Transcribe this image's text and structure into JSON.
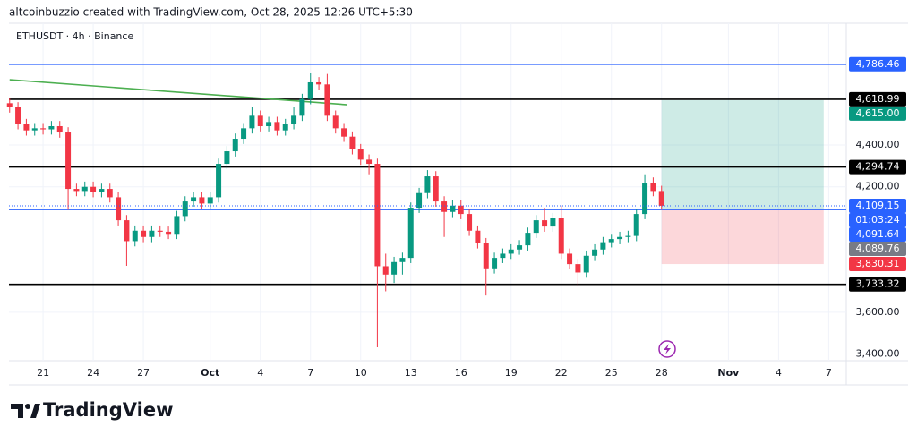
{
  "chart_data": {
    "type": "candlestick",
    "caption": "altcoinbuzzio created with TradingView.com, Oct 28, 2025 12:26 UTC+5:30",
    "title": "ETHUSDT · 4h · Binance",
    "brand": "TradingView",
    "up_color": "#089981",
    "down_color": "#f23645",
    "grid": true,
    "x": [
      19,
      19.5,
      20,
      20.5,
      21,
      21.5,
      22,
      22.5,
      23,
      23.5,
      24,
      24.5,
      25,
      25.5,
      26,
      26.5,
      27,
      27.5,
      28,
      28.5,
      29,
      29.5,
      30,
      30.5,
      31,
      31.5,
      32,
      32.5,
      33,
      33.5,
      34,
      34.5,
      35,
      35.5,
      36,
      36.5,
      37,
      37.5,
      38,
      38.5,
      39,
      39.5,
      40,
      40.5,
      41,
      41.5,
      42,
      42.5,
      43,
      43.5,
      44,
      44.5,
      45,
      45.5,
      46,
      46.5,
      47,
      47.5,
      48,
      48.5,
      49,
      49.5,
      50,
      50.5,
      51,
      51.5,
      52,
      52.5,
      53,
      53.5,
      54,
      54.5,
      55,
      55.5,
      56,
      56.5,
      57,
      57.5,
      58
    ],
    "open": [
      4600,
      4580,
      4500,
      4470,
      4480,
      4475,
      4490,
      4460,
      4190,
      4180,
      4200,
      4175,
      4190,
      4150,
      4040,
      3940,
      3990,
      3960,
      3990,
      3985,
      3975,
      4060,
      4130,
      4150,
      4120,
      4150,
      4310,
      4370,
      4430,
      4480,
      4540,
      4490,
      4510,
      4470,
      4500,
      4540,
      4620,
      4700,
      4690,
      4540,
      4480,
      4440,
      4380,
      4330,
      4310,
      3820,
      3780,
      3840,
      3860,
      4100,
      4170,
      4250,
      4130,
      4080,
      4110,
      4070,
      3990,
      3930,
      3810,
      3860,
      3880,
      3900,
      3920,
      3980,
      4040,
      4010,
      4050,
      3880,
      3830,
      3790,
      3870,
      3900,
      3935,
      3950,
      3960,
      3965,
      4070,
      4220,
      4180
    ],
    "high": [
      4625,
      4605,
      4525,
      4505,
      4505,
      4515,
      4515,
      4485,
      4215,
      4225,
      4225,
      4215,
      4215,
      4175,
      4065,
      4015,
      4015,
      4015,
      4015,
      4010,
      4085,
      4155,
      4175,
      4175,
      4175,
      4335,
      4395,
      4455,
      4505,
      4580,
      4565,
      4535,
      4535,
      4525,
      4580,
      4645,
      4743,
      4725,
      4740,
      4565,
      4505,
      4465,
      4405,
      4355,
      4335,
      3880,
      3865,
      3885,
      4125,
      4195,
      4280,
      4275,
      4155,
      4135,
      4135,
      4095,
      4015,
      3955,
      3885,
      3905,
      3925,
      3945,
      4005,
      4065,
      4100,
      4075,
      4110,
      3905,
      3855,
      3895,
      3925,
      3960,
      3975,
      3985,
      3990,
      4095,
      4260,
      4245,
      4205
    ],
    "low": [
      4555,
      4475,
      4445,
      4445,
      4450,
      4450,
      4435,
      4090,
      4155,
      4155,
      4150,
      4150,
      4125,
      4015,
      3822,
      3915,
      3935,
      3935,
      3960,
      3950,
      3950,
      4035,
      4105,
      4095,
      4095,
      4125,
      4285,
      4345,
      4405,
      4455,
      4465,
      4465,
      4445,
      4445,
      4475,
      4515,
      4595,
      4665,
      4515,
      4455,
      4415,
      4355,
      4305,
      4260,
      3432,
      3700,
      3740,
      3780,
      3835,
      4075,
      4145,
      4105,
      3960,
      4055,
      4045,
      3965,
      3905,
      3680,
      3785,
      3835,
      3855,
      3875,
      3895,
      3955,
      3985,
      3985,
      3855,
      3805,
      3723,
      3765,
      3845,
      3875,
      3910,
      3925,
      3935,
      3940,
      4045,
      4155,
      4090
    ],
    "close": [
      4580,
      4500,
      4470,
      4480,
      4475,
      4490,
      4460,
      4190,
      4180,
      4200,
      4175,
      4190,
      4150,
      4040,
      3940,
      3990,
      3960,
      3990,
      3985,
      3975,
      4060,
      4130,
      4150,
      4120,
      4150,
      4310,
      4370,
      4430,
      4480,
      4540,
      4490,
      4510,
      4470,
      4500,
      4540,
      4620,
      4700,
      4690,
      4540,
      4480,
      4440,
      4380,
      4330,
      4310,
      3820,
      3780,
      3840,
      3860,
      4100,
      4170,
      4250,
      4130,
      4080,
      4110,
      4070,
      3990,
      3930,
      3810,
      3860,
      3880,
      3900,
      3920,
      3980,
      4040,
      4010,
      4050,
      3880,
      3830,
      3790,
      3870,
      3900,
      3935,
      3950,
      3960,
      3965,
      4070,
      4220,
      4180,
      4109.15
    ],
    "xlim": [
      18.96,
      69.05
    ],
    "xticks": [
      21,
      24,
      27,
      {
        "value": 31,
        "label": "Oct"
      },
      {
        "value": 34,
        "label": "4"
      },
      {
        "value": 37,
        "label": "7"
      },
      {
        "value": 40,
        "label": "10"
      },
      {
        "value": 43,
        "label": "13"
      },
      {
        "value": 46,
        "label": "16"
      },
      {
        "value": 49,
        "label": "19"
      },
      {
        "value": 52,
        "label": "22"
      },
      {
        "value": 55,
        "label": "25"
      },
      {
        "value": 58,
        "label": "28"
      },
      {
        "value": 62,
        "label": "Nov"
      },
      {
        "value": 65,
        "label": "4"
      },
      {
        "value": 68,
        "label": "7"
      }
    ],
    "ylim": [
      3368,
      4974
    ],
    "yticks": [
      {
        "value": 3400,
        "label": "3,400.00"
      },
      {
        "value": 3600,
        "label": "3,600.00"
      },
      {
        "value": 4200,
        "label": "4,200.00"
      },
      {
        "value": 4400,
        "label": "4,400.00"
      }
    ],
    "levels": [
      {
        "value": 4786.46,
        "label": "4,786.46",
        "color": "#2962ff"
      },
      {
        "value": 4618.99,
        "label": "4,618.99",
        "color": "#000000"
      },
      {
        "value": 4294.74,
        "label": "4,294.74",
        "color": "#000000"
      },
      {
        "value": 4091.64,
        "label": "4,091.64",
        "color": "#2962ff"
      },
      {
        "value": 3733.32,
        "label": "3,733.32",
        "color": "#000000"
      }
    ],
    "trendline": {
      "x": [
        19,
        39.2
      ],
      "y": [
        4712.6,
        4592.7
      ],
      "color": "#4caf50"
    },
    "last_price": {
      "value": 4109.15,
      "label": "4,109.15",
      "countdown": "01:03:24",
      "color": "#2962ff"
    },
    "position": {
      "x": [
        58,
        67.7
      ],
      "entry": {
        "value": 4089.76,
        "label": "4,089.76",
        "color": "#787b86"
      },
      "target": {
        "value": 4615.0,
        "label": "4,615.00",
        "color": "#089981"
      },
      "stop": {
        "value": 3830.31,
        "label": "3,830.31",
        "color": "#f23645"
      }
    }
  }
}
